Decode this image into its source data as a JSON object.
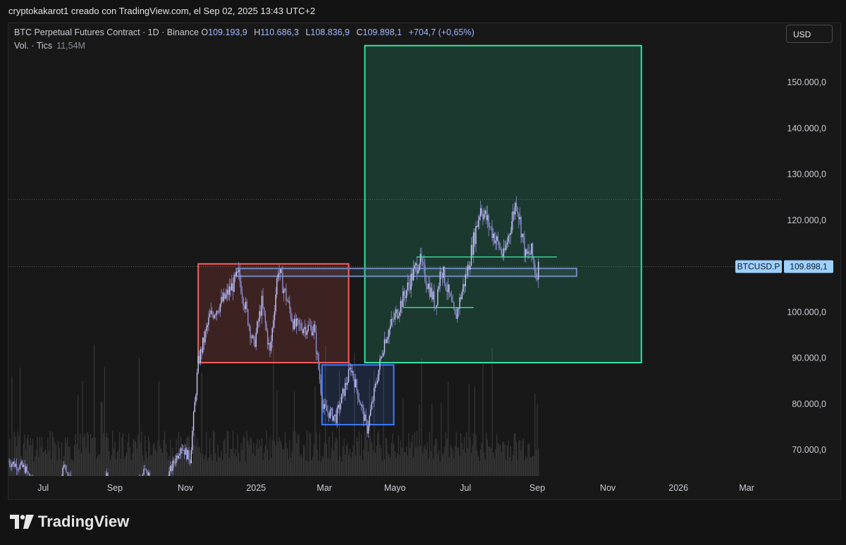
{
  "header": {
    "caption": "cryptokakarot1 creado con TradingView.com, el Sep 02, 2025 13:43 UTC+2"
  },
  "legend": {
    "symbol": "BTC Perpetual Futures Contract · 1D · Binance",
    "o_label": "O",
    "o_value": "109.193,9",
    "h_label": "H",
    "h_value": "110.686,3",
    "l_label": "L",
    "l_value": "108.836,9",
    "c_label": "C",
    "c_value": "109.898,1",
    "change": "+704,7 (+0,65%)",
    "volume_label": "Vol. · Tics",
    "volume_value": "11,54M"
  },
  "currency_button": "USD",
  "brand": "TradingView",
  "colors": {
    "background": "#181818",
    "candles": "#8d8fd0",
    "green_zone": "#2ee6a0",
    "red_zone": "#ff5a5a",
    "blue_zone": "#3d7bff",
    "level_line": "#3fe0a0",
    "price_tag": "#9fd0ff"
  },
  "chart_data": {
    "type": "candlestick",
    "title": "BTC Perpetual Futures Contract · 1D · Binance",
    "ylim": [
      64000,
      158000
    ],
    "y_ticks": [
      70000,
      80000,
      90000,
      100000,
      110000,
      120000,
      130000,
      140000,
      150000
    ],
    "y_tick_labels": [
      "70.000,0",
      "80.000,0",
      "90.000,0",
      "100.000,0",
      "110.000,0",
      "120.000,0",
      "130.000,0",
      "140.000,0",
      "150.000,0"
    ],
    "x_range": [
      "2024-06-01",
      "2026-04-01"
    ],
    "x_ticks": [
      "2024-07-01",
      "2024-09-01",
      "2024-11-01",
      "2025-01-01",
      "2025-03-01",
      "2025-05-01",
      "2025-07-01",
      "2025-09-01",
      "2025-11-01",
      "2026-01-01",
      "2026-03-01"
    ],
    "x_tick_labels": [
      "Jul",
      "Sep",
      "Nov",
      "2025",
      "Mar",
      "Mayo",
      "Jul",
      "Sep",
      "Nov",
      "2026",
      "Mar"
    ],
    "price_path": [
      {
        "date": "2024-06-01",
        "price": 67500
      },
      {
        "date": "2024-06-15",
        "price": 66000
      },
      {
        "date": "2024-07-05",
        "price": 56500
      },
      {
        "date": "2024-07-20",
        "price": 67000
      },
      {
        "date": "2024-08-05",
        "price": 53000
      },
      {
        "date": "2024-08-25",
        "price": 64000
      },
      {
        "date": "2024-09-06",
        "price": 53500
      },
      {
        "date": "2024-09-28",
        "price": 66000
      },
      {
        "date": "2024-10-10",
        "price": 60000
      },
      {
        "date": "2024-10-28",
        "price": 71000
      },
      {
        "date": "2024-11-05",
        "price": 68000
      },
      {
        "date": "2024-11-12",
        "price": 89000
      },
      {
        "date": "2024-11-22",
        "price": 99000
      },
      {
        "date": "2024-12-05",
        "price": 103000
      },
      {
        "date": "2024-12-17",
        "price": 108000
      },
      {
        "date": "2024-12-30",
        "price": 92500
      },
      {
        "date": "2025-01-06",
        "price": 102000
      },
      {
        "date": "2025-01-13",
        "price": 91000
      },
      {
        "date": "2025-01-20",
        "price": 109500
      },
      {
        "date": "2025-02-03",
        "price": 97000
      },
      {
        "date": "2025-02-20",
        "price": 96500
      },
      {
        "date": "2025-02-28",
        "price": 79000
      },
      {
        "date": "2025-03-11",
        "price": 77000
      },
      {
        "date": "2025-03-24",
        "price": 88000
      },
      {
        "date": "2025-04-07",
        "price": 74500
      },
      {
        "date": "2025-04-22",
        "price": 94000
      },
      {
        "date": "2025-05-08",
        "price": 103000
      },
      {
        "date": "2025-05-22",
        "price": 111500
      },
      {
        "date": "2025-06-05",
        "price": 101500
      },
      {
        "date": "2025-06-10",
        "price": 110000
      },
      {
        "date": "2025-06-22",
        "price": 98500
      },
      {
        "date": "2025-07-03",
        "price": 109500
      },
      {
        "date": "2025-07-14",
        "price": 123000
      },
      {
        "date": "2025-07-25",
        "price": 117000
      },
      {
        "date": "2025-08-03",
        "price": 112000
      },
      {
        "date": "2025-08-14",
        "price": 124500
      },
      {
        "date": "2025-08-22",
        "price": 112000
      },
      {
        "date": "2025-08-27",
        "price": 113000
      },
      {
        "date": "2025-08-31",
        "price": 108000
      },
      {
        "date": "2025-09-02",
        "price": 109898
      }
    ],
    "zones": [
      {
        "color": "red",
        "from": "2024-11-12",
        "to": "2025-03-22",
        "low": 89000,
        "high": 110500
      },
      {
        "color": "blue",
        "from": "2025-02-27",
        "to": "2025-04-30",
        "low": 75500,
        "high": 88500
      },
      {
        "color": "green",
        "from": "2025-04-05",
        "to": "2025-11-30",
        "low": 89000,
        "high": 158000
      },
      {
        "color": "steel",
        "from": "2024-12-15",
        "to": "2025-10-05",
        "low": 107800,
        "high": 109500
      }
    ],
    "levels": [
      {
        "from": "2025-05-20",
        "to": "2025-09-18",
        "price": 112000
      },
      {
        "from": "2025-05-08",
        "to": "2025-07-08",
        "price": 101000
      }
    ],
    "reference_lines": [
      {
        "price": 124500,
        "style": "dotted"
      },
      {
        "price": 109898.1,
        "style": "dotted"
      }
    ],
    "last_price": {
      "label": "BTCUSD.P",
      "value": "109.898,1",
      "price": 109898.1
    }
  }
}
